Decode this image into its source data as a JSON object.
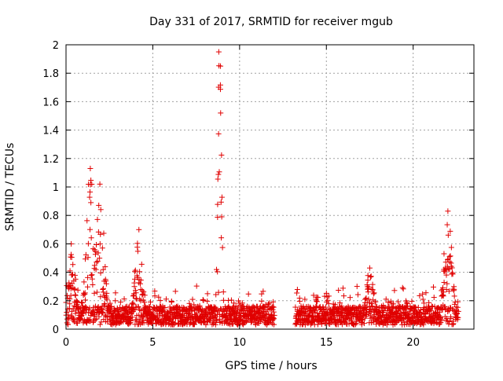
{
  "chart_data": {
    "type": "scatter",
    "title": "Day 331 of 2017, SRMTID for receiver mgub",
    "xlabel": "GPS time / hours",
    "ylabel": "SRMTID / TECUs",
    "xlim": [
      0,
      23.5
    ],
    "ylim": [
      0,
      2
    ],
    "xticks": [
      "0",
      "5",
      "10",
      "15",
      "20"
    ],
    "yticks": [
      "0",
      "0.2",
      "0.4",
      "0.6",
      "0.8",
      "1",
      "1.2",
      "1.4",
      "1.6",
      "1.8",
      "2"
    ],
    "grid": true,
    "marker": "+",
    "color": "#e00000",
    "series": [
      {
        "name": "SRMTID",
        "segments": [
          {
            "x_start": 0.0,
            "x_end": 12.0,
            "baseline": 0.12
          },
          {
            "x_start": 13.2,
            "x_end": 22.6,
            "baseline": 0.12
          }
        ],
        "peaks": [
          {
            "x": 0.3,
            "y": 0.6
          },
          {
            "x": 1.4,
            "y": 1.13
          },
          {
            "x": 1.95,
            "y": 1.02
          },
          {
            "x": 4.2,
            "y": 0.7
          },
          {
            "x": 8.8,
            "y": 1.95
          },
          {
            "x": 8.9,
            "y": 1.85
          },
          {
            "x": 17.5,
            "y": 0.43
          },
          {
            "x": 22.0,
            "y": 0.83
          }
        ]
      }
    ]
  }
}
